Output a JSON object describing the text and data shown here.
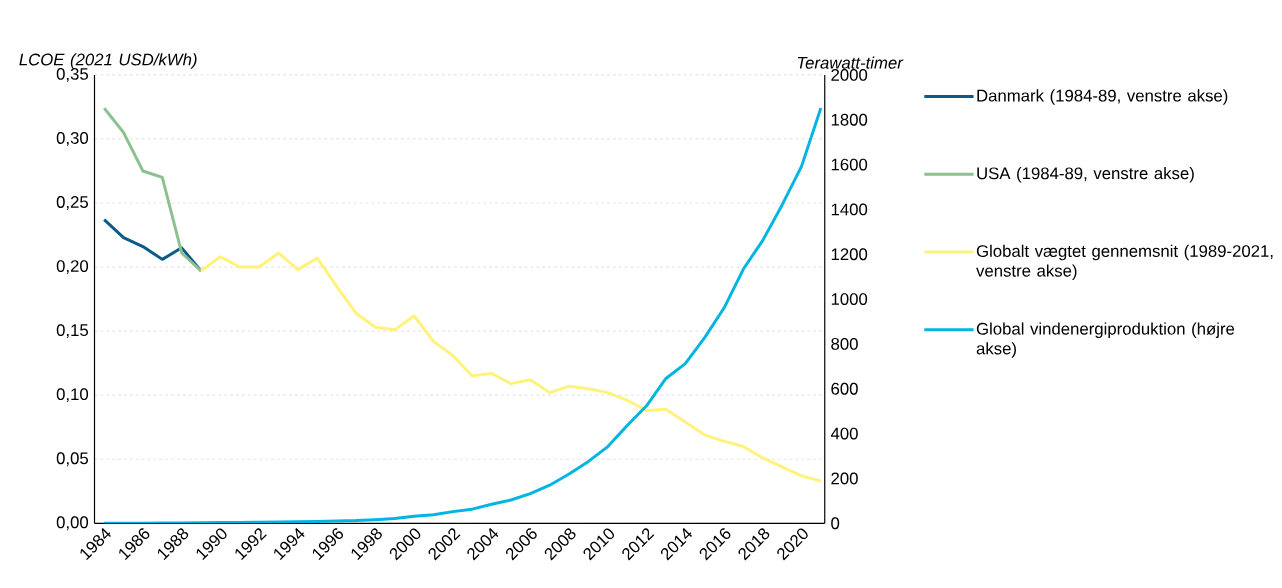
{
  "chart_data": {
    "type": "line",
    "ylabel": "*LCOE (2021 USD/kWh)*",
    "y2label": "*Terawatt-timer*",
    "xlim": [
      1983.5,
      2021.2
    ],
    "xticks": [
      1984,
      1986,
      1988,
      1990,
      1992,
      1994,
      1996,
      1998,
      2000,
      2002,
      2004,
      2006,
      2008,
      2010,
      2012,
      2014,
      2016,
      2018,
      2020
    ],
    "ylim": [
      0,
      0.35
    ],
    "yticks": [
      {
        "value": 0,
        "label": "0,00"
      },
      {
        "value": 0.05,
        "label": "0,05"
      },
      {
        "value": 0.1,
        "label": "0,10"
      },
      {
        "value": 0.15,
        "label": "0,15"
      },
      {
        "value": 0.2,
        "label": "0,20"
      },
      {
        "value": 0.25,
        "label": "0,25"
      },
      {
        "value": 0.3,
        "label": "0,30"
      },
      {
        "value": 0.35,
        "label": "0,35"
      }
    ],
    "y2lim": [
      0,
      2000
    ],
    "y2ticks": [
      0,
      200,
      400,
      600,
      800,
      1000,
      1200,
      1400,
      1600,
      1800,
      2000
    ],
    "grid": "y",
    "legend": "right",
    "marker": "none",
    "line_style": "solid",
    "series": [
      {
        "name": "Danmark (1984-89, venstre akse)",
        "color": "#0b5a8a",
        "x": [
          1984,
          1985,
          1986,
          1987,
          1988,
          1989
        ],
        "values": [
          0.237,
          0.223,
          0.216,
          0.206,
          0.215,
          0.197
        ]
      },
      {
        "name": "USA (1984-89, venstre akse)",
        "color": "#8dc08f",
        "x": [
          1984,
          1985,
          1986,
          1987,
          1988,
          1989
        ],
        "values": [
          0.324,
          0.305,
          0.275,
          0.27,
          0.211,
          0.197
        ]
      },
      {
        "name": "Globalt vægtet gennemsnit (1989-2021, venstre akse)",
        "color": "#fff27a",
        "x": [
          1989,
          1990,
          1991,
          1992,
          1993,
          1994,
          1995,
          1996,
          1997,
          1998,
          1999,
          2000,
          2001,
          2002,
          2003,
          2004,
          2005,
          2006,
          2007,
          2008,
          2009,
          2010,
          2011,
          2012,
          2013,
          2014,
          2015,
          2016,
          2017,
          2018,
          2019,
          2020,
          2021
        ],
        "values": [
          0.197,
          0.208,
          0.2,
          0.2,
          0.211,
          0.198,
          0.207,
          0.185,
          0.164,
          0.153,
          0.151,
          0.162,
          0.142,
          0.131,
          0.115,
          0.117,
          0.109,
          0.112,
          0.102,
          0.107,
          0.105,
          0.102,
          0.096,
          0.088,
          0.089,
          0.079,
          0.069,
          0.064,
          0.06,
          0.051,
          0.044,
          0.037,
          0.033
        ]
      },
      {
        "name": "Global vindenergiproduktion (højre akse)",
        "color": "#00b5e2",
        "axis": "y2",
        "x": [
          1984,
          1985,
          1986,
          1987,
          1988,
          1989,
          1990,
          1991,
          1992,
          1993,
          1994,
          1995,
          1996,
          1997,
          1998,
          1999,
          2000,
          2001,
          2002,
          2003,
          2004,
          2005,
          2006,
          2007,
          2008,
          2009,
          2010,
          2011,
          2012,
          2013,
          2014,
          2015,
          2016,
          2017,
          2018,
          2019,
          2020,
          2021
        ],
        "values": [
          0,
          0,
          0,
          1,
          1,
          2,
          4,
          4,
          5,
          6,
          7,
          8,
          10,
          12,
          16,
          21,
          31,
          38,
          52,
          63,
          85,
          104,
          132,
          170,
          220,
          276,
          342,
          436,
          524,
          646,
          712,
          828,
          960,
          1134,
          1262,
          1420,
          1592,
          1852
        ]
      }
    ]
  }
}
